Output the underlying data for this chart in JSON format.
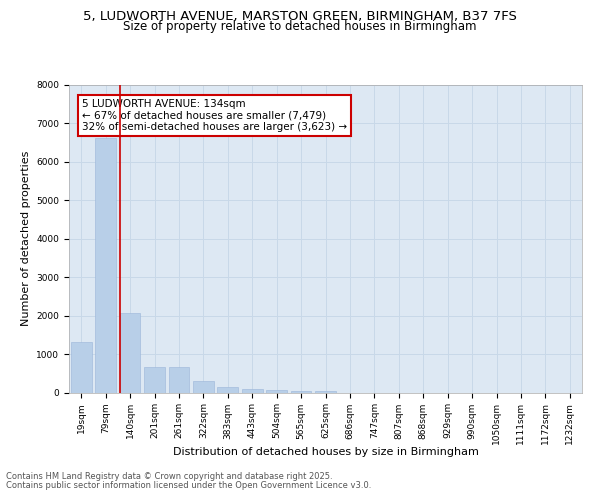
{
  "title_line1": "5, LUDWORTH AVENUE, MARSTON GREEN, BIRMINGHAM, B37 7FS",
  "title_line2": "Size of property relative to detached houses in Birmingham",
  "xlabel": "Distribution of detached houses by size in Birmingham",
  "ylabel": "Number of detached properties",
  "categories": [
    "19sqm",
    "79sqm",
    "140sqm",
    "201sqm",
    "261sqm",
    "322sqm",
    "383sqm",
    "443sqm",
    "504sqm",
    "565sqm",
    "625sqm",
    "686sqm",
    "747sqm",
    "807sqm",
    "868sqm",
    "929sqm",
    "990sqm",
    "1050sqm",
    "1111sqm",
    "1172sqm",
    "1232sqm"
  ],
  "values": [
    1320,
    6620,
    2080,
    670,
    670,
    290,
    140,
    80,
    55,
    50,
    50,
    0,
    0,
    0,
    0,
    0,
    0,
    0,
    0,
    0,
    0
  ],
  "bar_color": "#b8cfe8",
  "bar_edge_color": "#9ab5d8",
  "vline_x_index": 2,
  "vline_color": "#cc0000",
  "annotation_text": "5 LUDWORTH AVENUE: 134sqm\n← 67% of detached houses are smaller (7,479)\n32% of semi-detached houses are larger (3,623) →",
  "annotation_box_color": "#cc0000",
  "annotation_text_color": "#000000",
  "annotation_bg_color": "#ffffff",
  "ylim": [
    0,
    8000
  ],
  "yticks": [
    0,
    1000,
    2000,
    3000,
    4000,
    5000,
    6000,
    7000,
    8000
  ],
  "grid_color": "#c8d8e8",
  "background_color": "#dde8f3",
  "footer_line1": "Contains HM Land Registry data © Crown copyright and database right 2025.",
  "footer_line2": "Contains public sector information licensed under the Open Government Licence v3.0.",
  "title_fontsize": 9.5,
  "subtitle_fontsize": 8.5,
  "axis_label_fontsize": 8,
  "tick_fontsize": 6.5,
  "annotation_fontsize": 7.5,
  "footer_fontsize": 6
}
